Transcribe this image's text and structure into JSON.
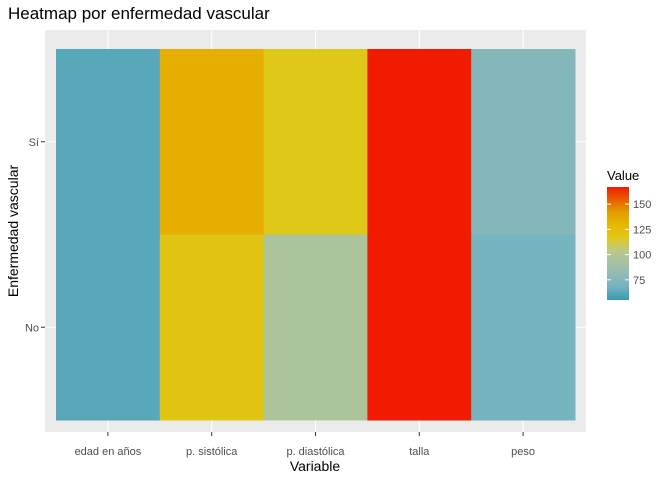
{
  "chart_data": {
    "type": "heatmap",
    "title": "Heatmap por enfermedad vascular",
    "xlabel": "Variable",
    "ylabel": "Enfermedad vascular",
    "x_categories": [
      "edad en años",
      "p. sistólica",
      "p. diastólica",
      "talla",
      "peso"
    ],
    "y_categories": [
      "No",
      "Sí"
    ],
    "rows": [
      {
        "y": "Sí",
        "values": [
          62,
          134,
          117,
          167,
          75
        ]
      },
      {
        "y": "No",
        "values": [
          62,
          119,
          96,
          167,
          70
        ]
      }
    ],
    "legend": {
      "title": "Value",
      "ticks": [
        75,
        100,
        125,
        150
      ],
      "range": [
        55,
        167
      ],
      "placement": "right"
    },
    "colors": {
      "panel": "#EBEBEB",
      "scale": [
        "#3A9AB2",
        "#6FB2C1",
        "#91BAB6",
        "#A5C2A3",
        "#BDC881",
        "#E0C816",
        "#E6B602",
        "#E29E00",
        "#EA5C00",
        "#F11B00"
      ]
    }
  }
}
